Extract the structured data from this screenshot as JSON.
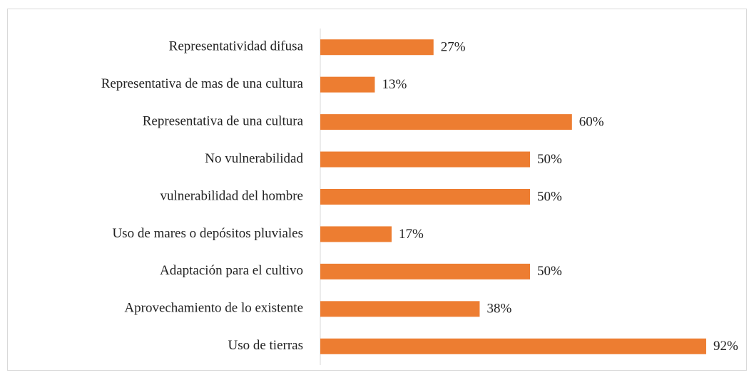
{
  "chart_data": {
    "type": "barh",
    "categories": [
      "Representatividad difusa",
      "Representativa de mas de una cultura",
      "Representativa de una cultura",
      "No vulnerabilidad",
      "vulnerabilidad del hombre",
      "Uso de mares o depósitos pluviales",
      "Adaptación para el cultivo",
      "Aprovechamiento de lo existente",
      "Uso de tierras"
    ],
    "values": [
      27,
      13,
      60,
      50,
      50,
      17,
      50,
      38,
      92
    ],
    "value_labels": [
      "27%",
      "13%",
      "60%",
      "50%",
      "50%",
      "17%",
      "50%",
      "38%",
      "92%"
    ],
    "color": "#ed7d31",
    "xlim": [
      0,
      100
    ]
  }
}
